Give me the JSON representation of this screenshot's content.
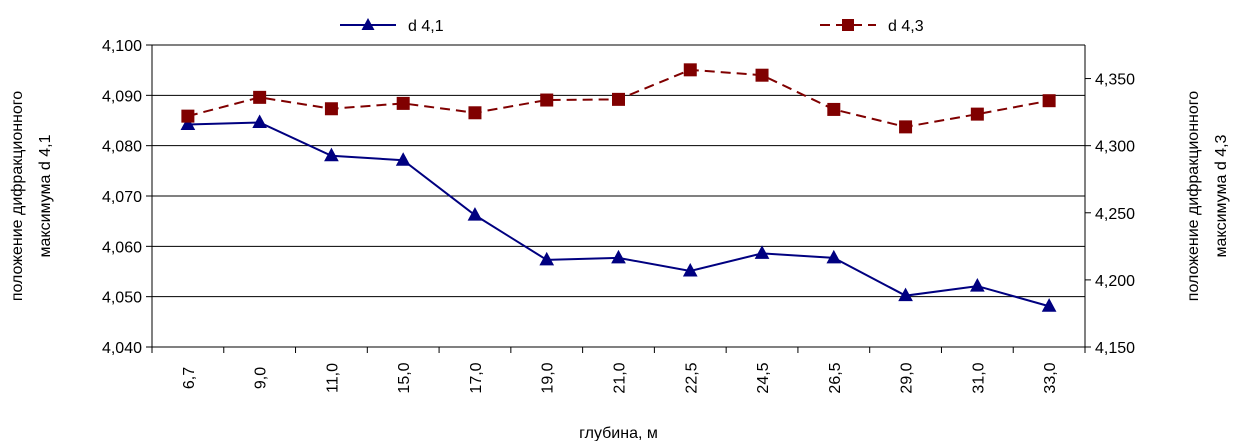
{
  "chart_data": {
    "type": "line",
    "categories": [
      "6,7",
      "9,0",
      "11,0",
      "15,0",
      "17,0",
      "19,0",
      "21,0",
      "22,5",
      "24,5",
      "26,5",
      "29,0",
      "31,0",
      "33,0"
    ],
    "xlabel": "глубина, м",
    "ylabel": "положение дифракционного максимума d 4,1",
    "y2label": "положение дифракционного максимума d 4,3",
    "ylim": [
      4.04,
      4.1
    ],
    "y2lim": [
      4.15,
      4.375
    ],
    "yticks": [
      "4,040",
      "4,050",
      "4,060",
      "4,070",
      "4,080",
      "4,090",
      "4,100"
    ],
    "y2ticks": [
      "4,150",
      "4,200",
      "4,250",
      "4,300",
      "4,350"
    ],
    "grid": true,
    "legend_position": "top",
    "series": [
      {
        "name": "d 4,1",
        "axis": "left",
        "color": "#000080",
        "marker": "triangle",
        "line_style": "solid",
        "values": [
          4.0842,
          4.0846,
          4.078,
          4.0771,
          4.0662,
          4.0573,
          4.0577,
          4.0551,
          4.0586,
          4.0577,
          4.0502,
          4.0521,
          4.0481
        ]
      },
      {
        "name": "d 4,3",
        "axis": "right",
        "color": "#800000",
        "marker": "square",
        "line_style": "dashed",
        "values": [
          4.322,
          4.336,
          4.3275,
          4.3315,
          4.3245,
          4.334,
          4.3345,
          4.3565,
          4.3525,
          4.327,
          4.314,
          4.3235,
          4.3335
        ]
      }
    ]
  }
}
